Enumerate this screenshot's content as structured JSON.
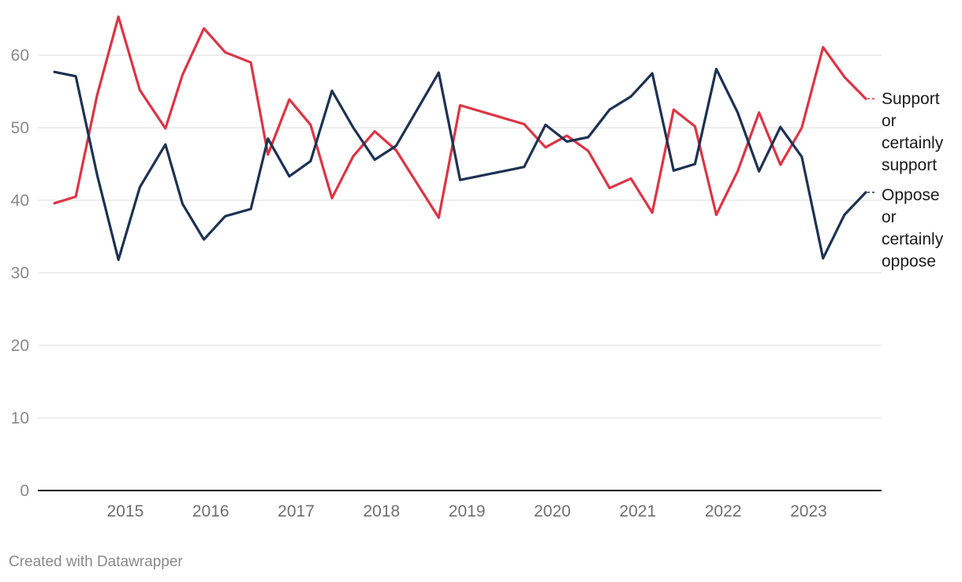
{
  "chart_data": {
    "type": "line",
    "ylim": [
      0,
      65
    ],
    "yticks": [
      0,
      10,
      20,
      30,
      40,
      50,
      60
    ],
    "xlim": [
      2014.1,
      2023.8
    ],
    "xticks": [
      "2015",
      "2016",
      "2017",
      "2018",
      "2019",
      "2020",
      "2021",
      "2022",
      "2023"
    ],
    "grid": true,
    "legend": "right",
    "series": [
      {
        "name": "Support or certainly support",
        "label_lines": [
          "Support",
          "or",
          "certainly",
          "support"
        ],
        "color": "#dc3545",
        "points": [
          [
            2014.17,
            39.6
          ],
          [
            2014.42,
            40.5
          ],
          [
            2014.67,
            54.5
          ],
          [
            2014.92,
            65.3
          ],
          [
            2015.17,
            55.2
          ],
          [
            2015.47,
            49.9
          ],
          [
            2015.67,
            57.3
          ],
          [
            2015.92,
            63.7
          ],
          [
            2016.17,
            60.4
          ],
          [
            2016.47,
            59.0
          ],
          [
            2016.67,
            46.3
          ],
          [
            2016.92,
            53.9
          ],
          [
            2017.17,
            50.4
          ],
          [
            2017.42,
            40.3
          ],
          [
            2017.67,
            46.1
          ],
          [
            2017.92,
            49.5
          ],
          [
            2018.17,
            46.9
          ],
          [
            2018.67,
            37.6
          ],
          [
            2018.92,
            53.1
          ],
          [
            2019.67,
            50.5
          ],
          [
            2019.92,
            47.3
          ],
          [
            2020.17,
            48.9
          ],
          [
            2020.42,
            46.8
          ],
          [
            2020.67,
            41.7
          ],
          [
            2020.92,
            43.0
          ],
          [
            2021.17,
            38.3
          ],
          [
            2021.42,
            52.5
          ],
          [
            2021.67,
            50.2
          ],
          [
            2021.92,
            38.0
          ],
          [
            2022.17,
            44.0
          ],
          [
            2022.42,
            52.1
          ],
          [
            2022.67,
            44.9
          ],
          [
            2022.92,
            50.0
          ],
          [
            2023.17,
            61.1
          ],
          [
            2023.42,
            57.0
          ],
          [
            2023.67,
            54.0
          ]
        ]
      },
      {
        "name": "Oppose or certainly oppose",
        "label_lines": [
          "Oppose",
          "or",
          "certainly",
          "oppose"
        ],
        "color": "#1e3252",
        "points": [
          [
            2014.17,
            57.7
          ],
          [
            2014.42,
            57.1
          ],
          [
            2014.67,
            43.5
          ],
          [
            2014.92,
            31.8
          ],
          [
            2015.17,
            41.8
          ],
          [
            2015.47,
            47.7
          ],
          [
            2015.67,
            39.5
          ],
          [
            2015.92,
            34.6
          ],
          [
            2016.17,
            37.8
          ],
          [
            2016.47,
            38.8
          ],
          [
            2016.67,
            48.5
          ],
          [
            2016.92,
            43.3
          ],
          [
            2017.17,
            45.4
          ],
          [
            2017.42,
            55.1
          ],
          [
            2017.67,
            50.0
          ],
          [
            2017.92,
            45.6
          ],
          [
            2018.17,
            47.5
          ],
          [
            2018.67,
            57.6
          ],
          [
            2018.92,
            42.8
          ],
          [
            2019.67,
            44.6
          ],
          [
            2019.92,
            50.4
          ],
          [
            2020.17,
            48.1
          ],
          [
            2020.42,
            48.7
          ],
          [
            2020.67,
            52.5
          ],
          [
            2020.92,
            54.3
          ],
          [
            2021.17,
            57.5
          ],
          [
            2021.42,
            44.1
          ],
          [
            2021.67,
            45.0
          ],
          [
            2021.92,
            58.1
          ],
          [
            2022.17,
            52.1
          ],
          [
            2022.42,
            44.0
          ],
          [
            2022.67,
            50.1
          ],
          [
            2022.92,
            46.0
          ],
          [
            2023.17,
            32.0
          ],
          [
            2023.42,
            38.0
          ],
          [
            2023.67,
            41.1
          ]
        ]
      }
    ]
  },
  "footer": {
    "credit": "Created with Datawrapper"
  }
}
